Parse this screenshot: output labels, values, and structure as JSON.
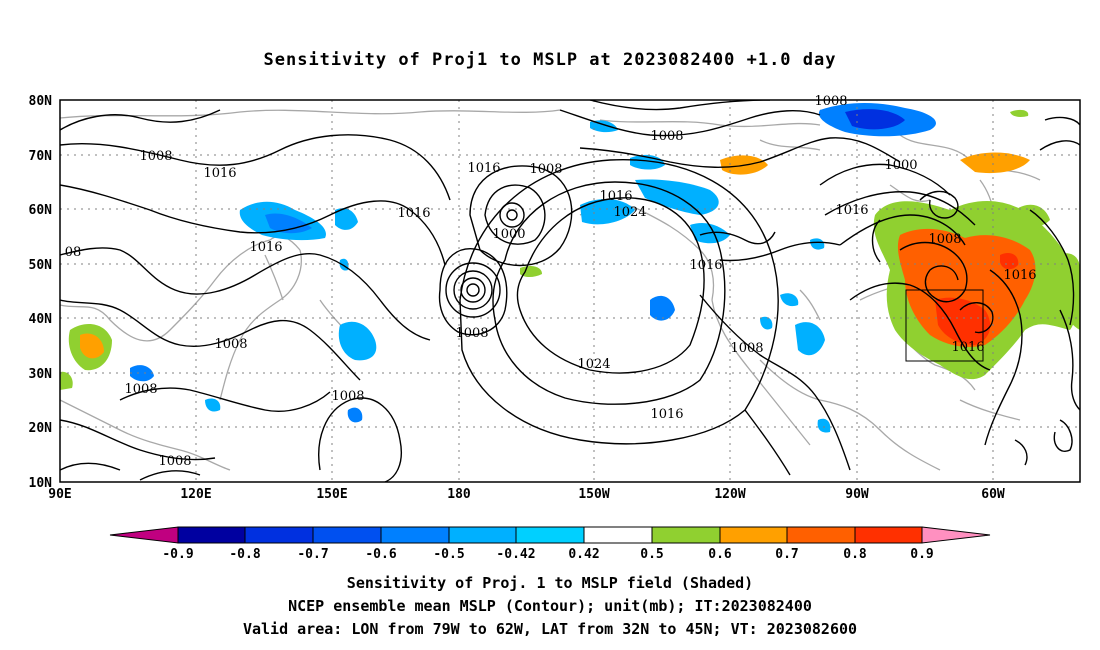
{
  "title": "Sensitivity of Proj1 to MSLP at 2023082400 +1.0 day",
  "map": {
    "lat_labels": [
      "80N",
      "70N",
      "60N",
      "50N",
      "40N",
      "30N",
      "20N",
      "10N"
    ],
    "lon_labels": [
      "90E",
      "120E",
      "150E",
      "180",
      "150W",
      "120W",
      "90W",
      "60W"
    ],
    "contour_levels": [
      "1000",
      "1008",
      "1016",
      "1024"
    ],
    "contour_labels": [
      "1008",
      "1016",
      "1016",
      "1016",
      "1008",
      "1016",
      "1008",
      "1000",
      "1008",
      "1016",
      "1024",
      "1016",
      "1008",
      "1024",
      "1016",
      "1008",
      "1000",
      "1016",
      "1008",
      "1016",
      "1016",
      "1008",
      "1008",
      "1008",
      "1008",
      "08"
    ],
    "valid_area_box": "79W-62W, 32N-45N"
  },
  "colorbar": {
    "labels": [
      "-0.9",
      "-0.8",
      "-0.7",
      "-0.6",
      "-0.5",
      "-0.42",
      "0.42",
      "0.5",
      "0.6",
      "0.7",
      "0.8",
      "0.9"
    ],
    "colors": [
      "#0000a0",
      "#0030e0",
      "#0050f0",
      "#0080ff",
      "#00b0ff",
      "#00d0ff",
      "#ffffff",
      "#90d030",
      "#ffa000",
      "#ff6000",
      "#ff3000",
      "#ff0000"
    ],
    "low_arrow_color": "#c00080",
    "high_arrow_color": "#ff90c0"
  },
  "captions": {
    "line1": "Sensitivity of Proj. 1 to MSLP field (Shaded)",
    "line2": "NCEP ensemble mean MSLP (Contour); unit(mb); IT:2023082400",
    "line3": "Valid area: LON from 79W to 62W, LAT from 32N to 45N; VT: 2023082600"
  }
}
